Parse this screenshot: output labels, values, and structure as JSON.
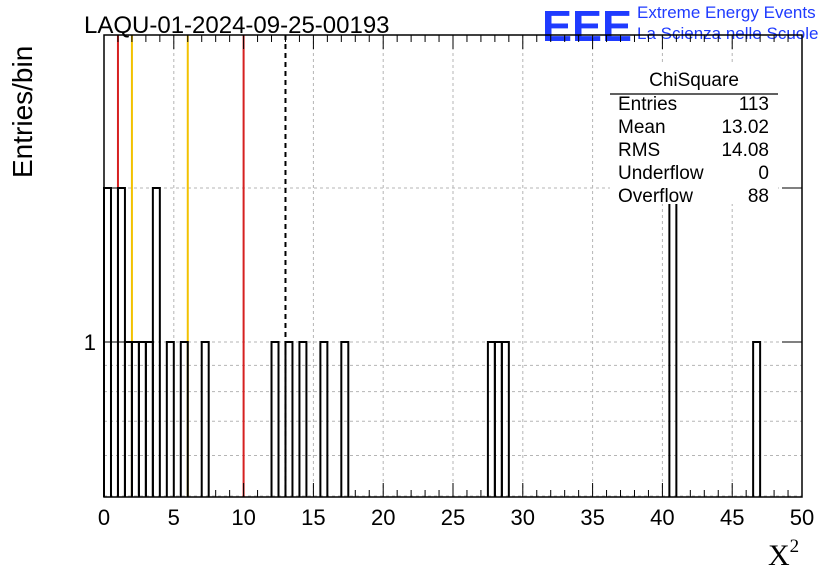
{
  "title": "LAQU-01-2024-09-25-00193",
  "xlabel": "X",
  "xlabel_sup": "2",
  "ylabel": "Entries/bin",
  "logo": {
    "letters": "EEE",
    "line1": "Extreme Energy Events",
    "line2": "La Scienza nelle Scuole"
  },
  "stats": {
    "name": "ChiSquare",
    "rows": [
      {
        "label": "Entries",
        "value": "113"
      },
      {
        "label": "Mean",
        "value": "13.02"
      },
      {
        "label": "RMS",
        "value": "14.08"
      },
      {
        "label": "Underflow",
        "value": "0"
      },
      {
        "label": "Overflow",
        "value": "88"
      }
    ]
  },
  "chart_data": {
    "type": "histogram",
    "xlim": [
      0,
      50
    ],
    "y_scale": "log",
    "x_ticks": [
      0,
      5,
      10,
      15,
      20,
      25,
      30,
      35,
      40,
      45,
      50
    ],
    "y_tick_labels": [
      "1"
    ],
    "bin_width": 0.5,
    "bins": [
      {
        "x": 0.0,
        "count": 2
      },
      {
        "x": 1.0,
        "count": 2
      },
      {
        "x": 1.5,
        "count": 1
      },
      {
        "x": 2.0,
        "count": 1
      },
      {
        "x": 2.5,
        "count": 1
      },
      {
        "x": 3.0,
        "count": 1
      },
      {
        "x": 3.5,
        "count": 2
      },
      {
        "x": 4.5,
        "count": 1
      },
      {
        "x": 5.5,
        "count": 1
      },
      {
        "x": 7.0,
        "count": 1
      },
      {
        "x": 12.0,
        "count": 1
      },
      {
        "x": 13.0,
        "count": 1
      },
      {
        "x": 14.0,
        "count": 1
      },
      {
        "x": 15.5,
        "count": 1
      },
      {
        "x": 17.0,
        "count": 1
      },
      {
        "x": 27.5,
        "count": 1
      },
      {
        "x": 28.0,
        "count": 1
      },
      {
        "x": 28.5,
        "count": 1
      },
      {
        "x": 40.5,
        "count": 2
      },
      {
        "x": 46.5,
        "count": 1
      }
    ],
    "vertical_lines": [
      {
        "x": 1,
        "color": "#d62020",
        "style": "solid"
      },
      {
        "x": 2,
        "color": "#f2c200",
        "style": "solid"
      },
      {
        "x": 6,
        "color": "#f2c200",
        "style": "solid"
      },
      {
        "x": 10,
        "color": "#d62020",
        "style": "solid"
      },
      {
        "x": 13,
        "color": "#000000",
        "style": "dashed"
      }
    ],
    "grid": true
  }
}
